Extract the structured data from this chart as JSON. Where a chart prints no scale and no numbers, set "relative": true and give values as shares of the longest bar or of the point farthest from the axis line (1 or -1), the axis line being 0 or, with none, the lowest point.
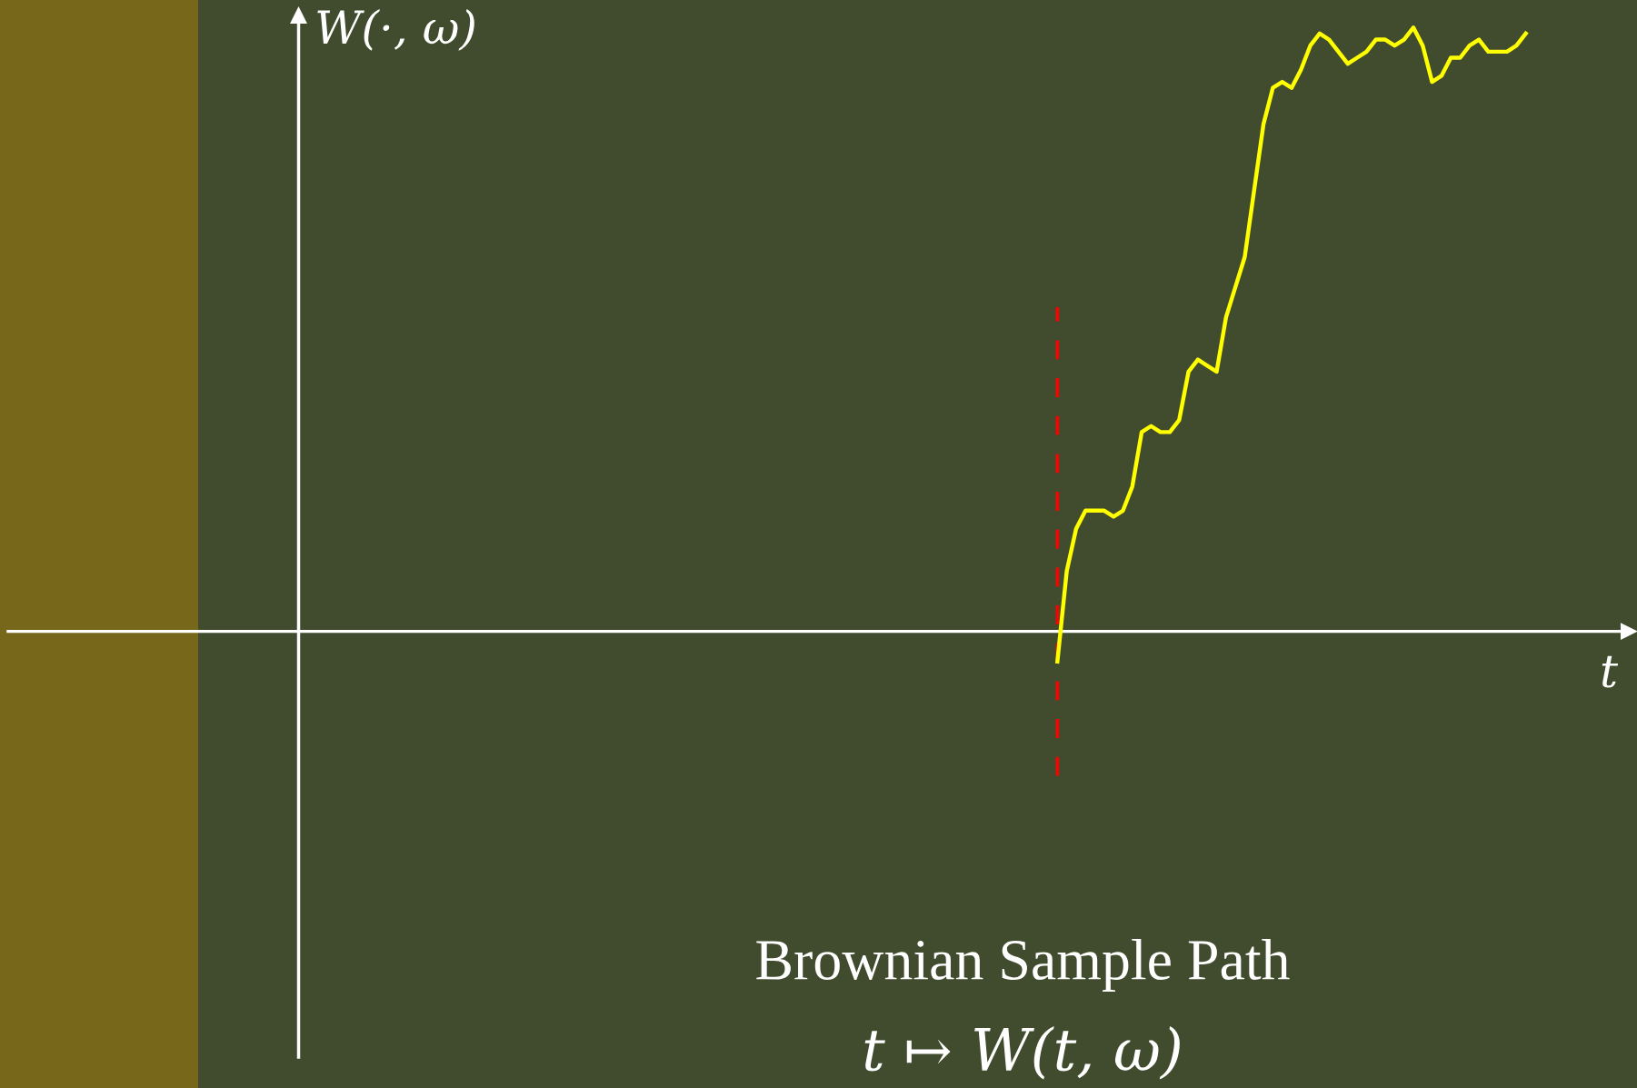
{
  "chart_data": {
    "type": "line",
    "relative": true,
    "title": "Brownian Sample Path",
    "subtitle": "t ↦ W(t, ω)",
    "xlabel": "t",
    "ylabel": "W(·, ω)",
    "categories": [
      null,
      null,
      null,
      null,
      null,
      null,
      null,
      null,
      null,
      null,
      null,
      null,
      null,
      null,
      null,
      null,
      null,
      null,
      null,
      null,
      null,
      null,
      null,
      null,
      null,
      null,
      null,
      null,
      null,
      null,
      null,
      null,
      null,
      null,
      null,
      null,
      null,
      null,
      null,
      null,
      null,
      null,
      null,
      null,
      null,
      null,
      null,
      null,
      null,
      null,
      null,
      null,
      null,
      null,
      null,
      null,
      null,
      null,
      null,
      null,
      null,
      null,
      null,
      null,
      null,
      null,
      null,
      null,
      null,
      null,
      null,
      null,
      null,
      null,
      null,
      null,
      null,
      null,
      null,
      null,
      null,
      null,
      null,
      null,
      null,
      null,
      null,
      null,
      null,
      null,
      null,
      null,
      null,
      null,
      null,
      null,
      null,
      null,
      null,
      null,
      null,
      null,
      null,
      null,
      null,
      null,
      null,
      null,
      null,
      null,
      null,
      null,
      null,
      null,
      null,
      null,
      null,
      null,
      null,
      null,
      null,
      null,
      null,
      null,
      null,
      null,
      null,
      null,
      null,
      null,
      null,
      null,
      null,
      null,
      null,
      null,
      null,
      null,
      null,
      null,
      null,
      null,
      null
    ],
    "series": [
      {
        "color": "#ffff00",
        "values": [
          null,
          null,
          null,
          null,
          null,
          null,
          null,
          null,
          null,
          null,
          null,
          null,
          null,
          null,
          null,
          null,
          null,
          null,
          null,
          null,
          null,
          null,
          null,
          null,
          null,
          null,
          null,
          null,
          null,
          null,
          null,
          null,
          null,
          null,
          null,
          null,
          null,
          null,
          null,
          null,
          null,
          null,
          null,
          null,
          null,
          null,
          null,
          null,
          null,
          null,
          null,
          null,
          null,
          null,
          null,
          null,
          null,
          null,
          null,
          null,
          null,
          null,
          null,
          null,
          null,
          null,
          null,
          null,
          null,
          null,
          null,
          null,
          null,
          null,
          null,
          null,
          null,
          null,
          null,
          null,
          null,
          -0.05,
          0.1,
          0.17,
          0.2,
          0.2,
          0.2,
          0.19,
          0.2,
          0.24,
          0.33,
          0.34,
          0.33,
          0.33,
          0.35,
          0.43,
          0.45,
          0.44,
          0.43,
          0.52,
          0.57,
          0.62,
          0.73,
          0.84,
          0.9,
          0.91,
          0.9,
          0.93,
          0.97,
          0.99,
          0.98,
          0.96,
          0.94,
          0.95,
          0.96,
          0.98,
          0.98,
          0.97,
          0.98,
          1.0,
          0.97,
          0.91,
          0.92,
          0.95,
          0.95,
          0.97,
          0.98,
          0.96,
          0.96,
          0.96,
          0.97,
          0.99,
          null,
          null,
          null,
          null,
          null,
          null,
          null,
          null,
          null,
          null,
          null
        ]
      }
    ],
    "legend": false,
    "grid": false,
    "marker": "none",
    "line_style": "solid"
  }
}
